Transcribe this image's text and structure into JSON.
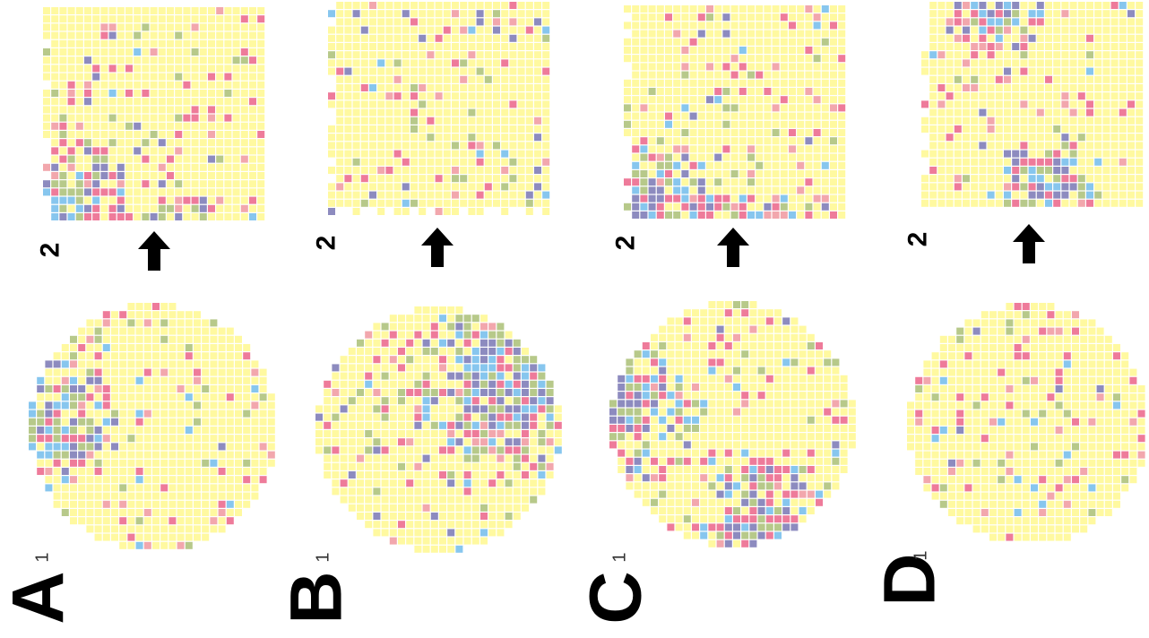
{
  "panels": [
    {
      "letter": "A",
      "before_label": "1",
      "after_label": "2",
      "seed": 11,
      "hot": "left"
    },
    {
      "letter": "B",
      "before_label": "1",
      "after_label": "2",
      "seed": 23,
      "hot": "top-right"
    },
    {
      "letter": "C",
      "before_label": "1",
      "after_label": "2",
      "seed": 37,
      "hot": "left-bottom"
    },
    {
      "letter": "D",
      "before_label": "1",
      "after_label": "2",
      "seed": 53,
      "hot": "sparse"
    }
  ],
  "palette": {
    "background_cell": "#fff9a0",
    "red": "#ee7b9a",
    "red_light": "#f2a7ad",
    "green": "#b7c98a",
    "blue": "#87c6ee",
    "purple": "#8d8bbf",
    "arrow": "#000000"
  }
}
